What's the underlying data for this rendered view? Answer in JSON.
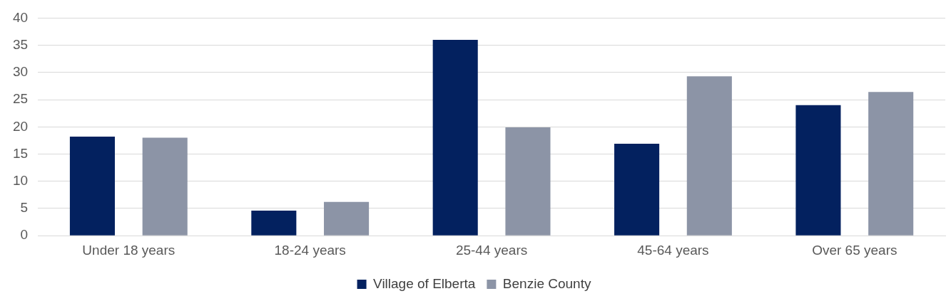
{
  "chart_data": {
    "type": "bar",
    "categories": [
      "Under 18 years",
      "18-24 years",
      "25-44 years",
      "45-64 years",
      "Over 65 years"
    ],
    "series": [
      {
        "name": "Village of Elberta",
        "color": "#03215f",
        "values": [
          18.2,
          4.6,
          36.0,
          16.9,
          24.0
        ]
      },
      {
        "name": "Benzie County",
        "color": "#8c94a6",
        "values": [
          18.0,
          6.2,
          19.9,
          29.3,
          26.4
        ]
      }
    ],
    "ylim": [
      0,
      40
    ],
    "yticks": [
      0,
      5,
      10,
      15,
      20,
      25,
      30,
      35,
      40
    ],
    "grid": "y",
    "legend": "bottom"
  }
}
